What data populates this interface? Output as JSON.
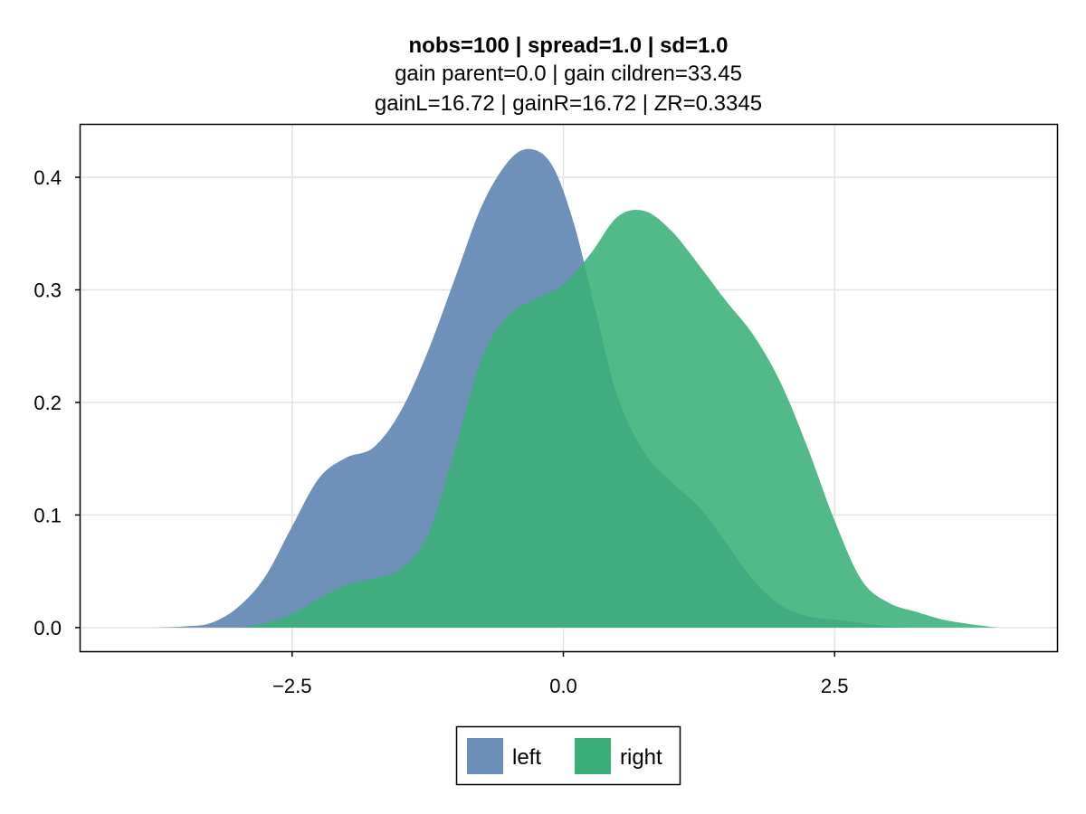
{
  "chart_data": {
    "type": "area",
    "title": "nobs=100 | spread=1.0 | sd=1.0",
    "subtitle_lines": [
      "gain parent=0.0 | gain cildren=33.45",
      "gainL=16.72 | gainR=16.72 | ZR=0.3345"
    ],
    "xlabel": "",
    "ylabel": "",
    "xlim": [
      -4.45,
      4.55
    ],
    "ylim": [
      -0.021,
      0.4466
    ],
    "xticks": [
      {
        "value": -2.5,
        "label": "−2.5"
      },
      {
        "value": 0.0,
        "label": "0.0"
      },
      {
        "value": 2.5,
        "label": "2.5"
      }
    ],
    "yticks": [
      {
        "value": 0.0,
        "label": "0.0"
      },
      {
        "value": 0.1,
        "label": "0.1"
      },
      {
        "value": 0.2,
        "label": "0.2"
      },
      {
        "value": 0.3,
        "label": "0.3"
      },
      {
        "value": 0.4,
        "label": "0.4"
      }
    ],
    "grid": true,
    "legend_position": "bottom-center",
    "series": [
      {
        "name": "left",
        "color": "#6b8eb8",
        "points": [
          [
            -3.75,
            0.0
          ],
          [
            -3.5,
            0.001
          ],
          [
            -3.25,
            0.004
          ],
          [
            -3.0,
            0.018
          ],
          [
            -2.75,
            0.045
          ],
          [
            -2.5,
            0.09
          ],
          [
            -2.25,
            0.133
          ],
          [
            -2.0,
            0.151
          ],
          [
            -1.75,
            0.16
          ],
          [
            -1.5,
            0.192
          ],
          [
            -1.25,
            0.245
          ],
          [
            -1.0,
            0.31
          ],
          [
            -0.75,
            0.375
          ],
          [
            -0.5,
            0.415
          ],
          [
            -0.3,
            0.425
          ],
          [
            -0.1,
            0.41
          ],
          [
            0.1,
            0.358
          ],
          [
            0.3,
            0.28
          ],
          [
            0.5,
            0.205
          ],
          [
            0.75,
            0.155
          ],
          [
            1.0,
            0.129
          ],
          [
            1.25,
            0.107
          ],
          [
            1.5,
            0.075
          ],
          [
            1.75,
            0.042
          ],
          [
            2.0,
            0.02
          ],
          [
            2.25,
            0.01
          ],
          [
            2.5,
            0.007
          ],
          [
            2.75,
            0.004
          ],
          [
            3.0,
            0.001
          ],
          [
            3.25,
            0.0
          ]
        ]
      },
      {
        "name": "right",
        "color": "#3aaf78",
        "points": [
          [
            -3.0,
            0.0
          ],
          [
            -2.75,
            0.004
          ],
          [
            -2.5,
            0.012
          ],
          [
            -2.25,
            0.026
          ],
          [
            -2.0,
            0.038
          ],
          [
            -1.75,
            0.044
          ],
          [
            -1.5,
            0.052
          ],
          [
            -1.25,
            0.082
          ],
          [
            -1.0,
            0.158
          ],
          [
            -0.75,
            0.24
          ],
          [
            -0.5,
            0.278
          ],
          [
            -0.25,
            0.292
          ],
          [
            0.0,
            0.305
          ],
          [
            0.25,
            0.332
          ],
          [
            0.5,
            0.365
          ],
          [
            0.75,
            0.37
          ],
          [
            1.0,
            0.352
          ],
          [
            1.25,
            0.322
          ],
          [
            1.5,
            0.29
          ],
          [
            1.75,
            0.26
          ],
          [
            2.0,
            0.218
          ],
          [
            2.25,
            0.16
          ],
          [
            2.5,
            0.095
          ],
          [
            2.75,
            0.042
          ],
          [
            3.0,
            0.022
          ],
          [
            3.25,
            0.014
          ],
          [
            3.5,
            0.007
          ],
          [
            3.75,
            0.003
          ],
          [
            4.0,
            0.0
          ]
        ]
      }
    ],
    "legend": [
      {
        "label": "left",
        "color": "#6b8eb8"
      },
      {
        "label": "right",
        "color": "#3aaf78"
      }
    ]
  }
}
